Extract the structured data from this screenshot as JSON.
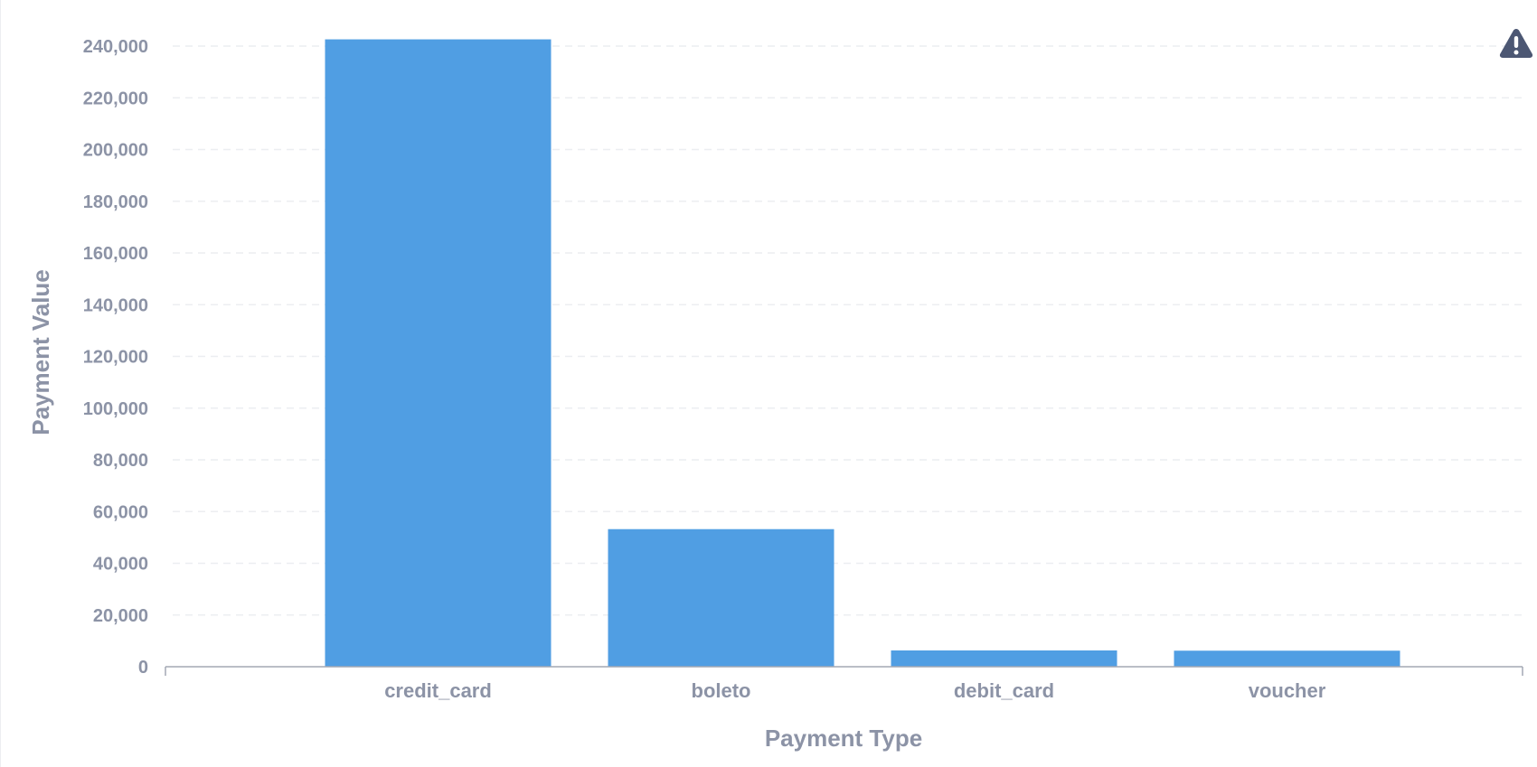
{
  "chart_data": {
    "type": "bar",
    "categories": [
      "credit_card",
      "boleto",
      "debit_card",
      "voucher"
    ],
    "values": [
      242600,
      53200,
      6300,
      6200
    ],
    "xlabel": "Payment Type",
    "ylabel": "Payment Value",
    "ylim": [
      0,
      240000
    ],
    "yticks": [
      "0",
      "20,000",
      "40,000",
      "60,000",
      "80,000",
      "100,000",
      "120,000",
      "140,000",
      "160,000",
      "180,000",
      "200,000",
      "220,000",
      "240,000"
    ],
    "grid": true,
    "legend": "none",
    "bar_color": "#509ee3"
  },
  "icons": {
    "warning": "warning-triangle-icon"
  }
}
